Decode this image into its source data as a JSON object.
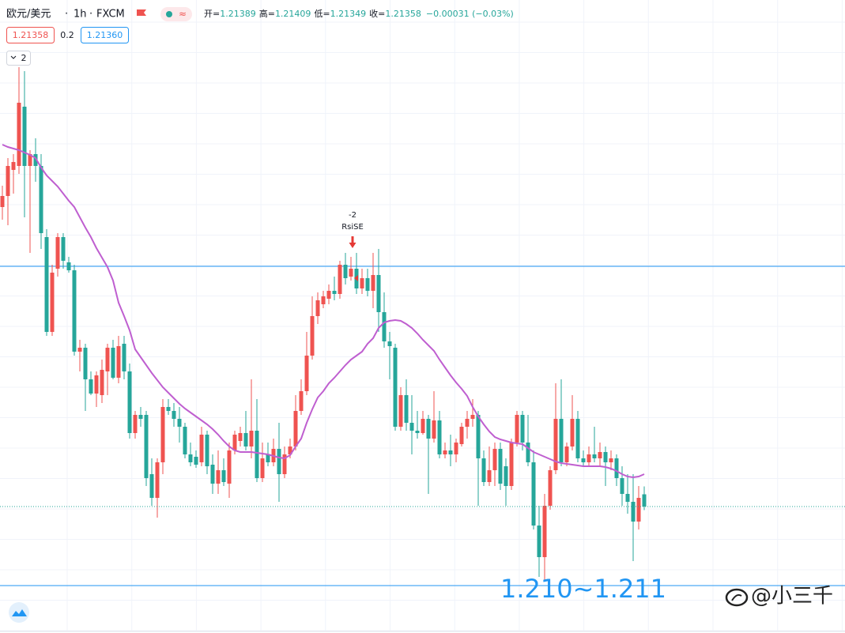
{
  "chart_data": {
    "type": "candlestick",
    "symbol": "欧元/美元",
    "interval": "1h",
    "source": "FXCM",
    "ohlc_labels": [
      "开=",
      "高=",
      "低=",
      "收="
    ],
    "change": "−0.00031 (−0.03%)",
    "spread": 0.2,
    "ask": "1.21360",
    "collapse_label": "2",
    "signal_labels": [
      "-2",
      "RsiSE"
    ],
    "annotation": "1.210~1.211",
    "watermark": "@小三千",
    "up_color": "#ef5350",
    "down_color": "#26a69a",
    "ma_color": "#bf5fd0",
    "hline_color": "#2196f3",
    "grid": true,
    "ylim": [
      1.2104,
      1.2264
    ],
    "hlines": [
      1.21966,
      1.21158
    ],
    "open": [
      1.22116,
      1.22144,
      1.2221,
      1.2222,
      1.2237,
      1.2222,
      1.2225,
      1.2222,
      1.2204,
      1.218,
      1.2196,
      1.2204,
      1.21976,
      1.21956,
      1.2175,
      1.2176,
      1.2168,
      1.21644,
      1.2164,
      1.217,
      1.2176,
      1.21684,
      1.2177,
      1.217,
      1.21544,
      1.2159,
      1.2159,
      1.2144,
      1.2138,
      1.2147,
      1.2161,
      1.216,
      1.2158,
      1.2156,
      1.2149,
      1.21484,
      1.2147,
      1.2154,
      1.21464,
      1.21416,
      1.2145,
      1.21416,
      1.215,
      1.21524,
      1.21544,
      1.2151,
      1.2155,
      1.2143,
      1.2149,
      1.2147,
      1.21504,
      1.2144,
      1.2149,
      1.2151,
      1.216,
      1.2165,
      1.2174,
      1.2184,
      1.2187,
      1.21884,
      1.21904,
      1.21896,
      1.2197,
      1.2194,
      1.2196,
      1.2191,
      1.21936,
      1.21904,
      1.21944,
      1.2185,
      1.21776,
      1.2176,
      1.2156,
      1.2164,
      1.2157,
      1.2155,
      1.21544,
      1.2158,
      1.2153,
      1.21576,
      1.2149,
      1.215,
      1.2149,
      1.21516,
      1.2156,
      1.2158,
      1.2159,
      1.2148,
      1.2142,
      1.2145,
      1.21504,
      1.2146,
      1.2141,
      1.2152,
      1.2159,
      1.2152,
      1.2147,
      1.2131,
      1.2123,
      1.2136,
      1.2145,
      1.2158,
      1.2147,
      1.2151,
      1.2158,
      1.2148,
      1.2147,
      1.2149,
      1.2148,
      1.21496,
      1.2147,
      1.2148,
      1.2143,
      1.2139,
      1.2137,
      1.2132,
      1.21389
    ],
    "high": [
      1.2217,
      1.2224,
      1.2225,
      1.2247,
      1.2246,
      1.2226,
      1.2229,
      1.2225,
      1.2206,
      1.2197,
      1.2205,
      1.2205,
      1.2199,
      1.2197,
      1.2178,
      1.2177,
      1.217,
      1.217,
      1.2173,
      1.2177,
      1.2178,
      1.2179,
      1.2179,
      1.2172,
      1.216,
      1.2161,
      1.216,
      1.2148,
      1.2148,
      1.2163,
      1.2163,
      1.2162,
      1.2161,
      1.2157,
      1.2152,
      1.215,
      1.2156,
      1.2155,
      1.2149,
      1.215,
      1.2148,
      1.2152,
      1.2155,
      1.2156,
      1.216,
      1.2168,
      1.2163,
      1.2152,
      1.2152,
      1.2153,
      1.2157,
      1.2151,
      1.2153,
      1.2164,
      1.2168,
      1.218,
      1.2189,
      1.219,
      1.21904,
      1.2192,
      1.2194,
      1.2198,
      1.22,
      1.2199,
      1.22,
      1.2196,
      1.2196,
      1.22,
      1.2201,
      1.219,
      1.218,
      1.2177,
      1.2166,
      1.2168,
      1.2164,
      1.216,
      1.216,
      1.2159,
      1.2165,
      1.216,
      1.2152,
      1.2154,
      1.2153,
      1.2157,
      1.216,
      1.2163,
      1.216,
      1.215,
      1.2151,
      1.2152,
      1.2152,
      1.2148,
      1.2153,
      1.216,
      1.216,
      1.2159,
      1.215,
      1.2136,
      1.2139,
      1.2146,
      1.2167,
      1.2168,
      1.2152,
      1.2164,
      1.216,
      1.215,
      1.2151,
      1.2156,
      1.2152,
      1.2151,
      1.215,
      1.2149,
      1.2146,
      1.2144,
      1.2144,
      1.2141,
      1.21409
    ],
    "low": [
      1.22084,
      1.2207,
      1.2215,
      1.222,
      1.2209,
      1.22,
      1.2218,
      1.2201,
      1.2179,
      1.2179,
      1.2194,
      1.2196,
      1.2195,
      1.2174,
      1.217,
      1.216,
      1.2164,
      1.2161,
      1.2162,
      1.2164,
      1.2168,
      1.2167,
      1.2168,
      1.2153,
      1.2153,
      1.2156,
      1.2141,
      1.2136,
      1.2133,
      1.2144,
      1.2159,
      1.2156,
      1.2152,
      1.2148,
      1.2146,
      1.21456,
      1.2146,
      1.2144,
      1.2139,
      1.2139,
      1.2141,
      1.2138,
      1.2149,
      1.2151,
      1.215,
      1.2148,
      1.2142,
      1.2142,
      1.2146,
      1.2146,
      1.2137,
      1.2143,
      1.2148,
      1.215,
      1.2159,
      1.2164,
      1.2173,
      1.2182,
      1.2186,
      1.2187,
      1.2188,
      1.21884,
      1.2192,
      1.2193,
      1.21896,
      1.21896,
      1.2189,
      1.2186,
      1.218,
      1.2176,
      1.2168,
      1.2155,
      1.2155,
      1.2155,
      1.2149,
      1.2153,
      1.2154,
      1.2139,
      1.2152,
      1.2148,
      1.2148,
      1.2146,
      1.2147,
      1.2151,
      1.2153,
      1.2156,
      1.2136,
      1.2141,
      1.2141,
      1.2141,
      1.214,
      1.2136,
      1.214,
      1.2151,
      1.215,
      1.2146,
      1.213,
      1.2118,
      1.2117,
      1.2135,
      1.2144,
      1.2146,
      1.2146,
      1.215,
      1.2147,
      1.2146,
      1.2146,
      1.2147,
      1.2146,
      1.2141,
      1.2145,
      1.2141,
      1.2136,
      1.2134,
      1.2122,
      1.213,
      1.21349
    ],
    "close": [
      1.22144,
      1.2222,
      1.2223,
      1.2238,
      1.2222,
      1.2225,
      1.2222,
      1.2205,
      1.218,
      1.2195,
      1.2204,
      1.2198,
      1.21956,
      1.2175,
      1.2176,
      1.2168,
      1.21644,
      1.2169,
      1.21704,
      1.2176,
      1.21684,
      1.21764,
      1.217,
      1.21544,
      1.2159,
      1.2158,
      1.2143,
      1.2138,
      1.2147,
      1.2161,
      1.216,
      1.2158,
      1.2156,
      1.2149,
      1.2147,
      1.21464,
      1.2154,
      1.2146,
      1.21416,
      1.2145,
      1.2142,
      1.215,
      1.2154,
      1.21544,
      1.2151,
      1.2155,
      1.2143,
      1.2148,
      1.2147,
      1.21504,
      1.2144,
      1.2149,
      1.2151,
      1.216,
      1.2165,
      1.2174,
      1.2184,
      1.2188,
      1.2189,
      1.21904,
      1.21896,
      1.2197,
      1.21936,
      1.2196,
      1.2191,
      1.21936,
      1.21904,
      1.21944,
      1.2185,
      1.21776,
      1.21764,
      1.2156,
      1.2164,
      1.2157,
      1.2155,
      1.21544,
      1.2158,
      1.2153,
      1.21576,
      1.2149,
      1.215,
      1.2149,
      1.2152,
      1.2156,
      1.2158,
      1.2159,
      1.2148,
      1.2142,
      1.2145,
      1.21504,
      1.21416,
      1.2141,
      1.2152,
      1.2159,
      1.2152,
      1.2147,
      1.2131,
      1.2123,
      1.2136,
      1.2145,
      1.2158,
      1.2147,
      1.2151,
      1.2158,
      1.2148,
      1.2147,
      1.2149,
      1.2148,
      1.21496,
      1.2147,
      1.2148,
      1.2143,
      1.2139,
      1.2137,
      1.2132,
      1.2138,
      1.21358
    ],
    "ma": [
      1.22274,
      1.22268,
      1.22264,
      1.2226,
      1.22254,
      1.22248,
      1.2224,
      1.22216,
      1.22196,
      1.22182,
      1.22168,
      1.2215,
      1.22132,
      1.22116,
      1.2209,
      1.22064,
      1.2204,
      1.22012,
      1.21988,
      1.21964,
      1.2193,
      1.21874,
      1.2184,
      1.21804,
      1.21756,
      1.21736,
      1.21716,
      1.21696,
      1.21678,
      1.2166,
      1.21646,
      1.21632,
      1.21618,
      1.21606,
      1.21596,
      1.21586,
      1.21576,
      1.21566,
      1.21554,
      1.2154,
      1.21524,
      1.2151,
      1.215,
      1.21496,
      1.21496,
      1.21496,
      1.21494,
      1.21492,
      1.2149,
      1.21486,
      1.21482,
      1.2148,
      1.21488,
      1.2151,
      1.2153,
      1.2157,
      1.21604,
      1.21634,
      1.2165,
      1.2167,
      1.21684,
      1.217,
      1.21716,
      1.2173,
      1.2174,
      1.2175,
      1.2177,
      1.21784,
      1.2181,
      1.21824,
      1.21828,
      1.2183,
      1.21828,
      1.2182,
      1.2181,
      1.21796,
      1.2178,
      1.21766,
      1.21752,
      1.2173,
      1.2171,
      1.2169,
      1.21672,
      1.21656,
      1.21638,
      1.2161,
      1.21586,
      1.21566,
      1.21548,
      1.21534,
      1.21528,
      1.21524,
      1.2152,
      1.21518,
      1.21516,
      1.21506,
      1.21496,
      1.2149,
      1.21484,
      1.21478,
      1.21472,
      1.21468,
      1.21466,
      1.21464,
      1.21462,
      1.2146,
      1.2146,
      1.2146,
      1.2146,
      1.21458,
      1.21454,
      1.21448,
      1.2144,
      1.21434,
      1.21432,
      1.21434,
      1.2144
    ]
  }
}
